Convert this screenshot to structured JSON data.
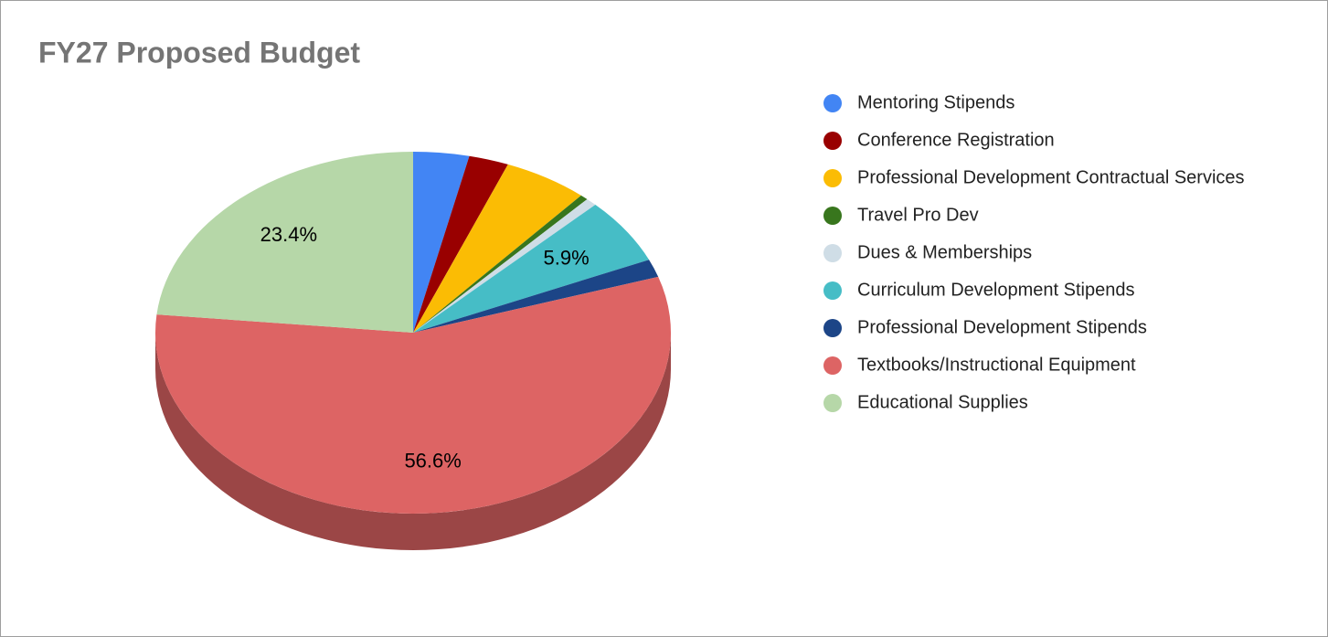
{
  "chart_data": {
    "type": "pie",
    "title": "FY27 Proposed Budget",
    "categories": [
      "Mentoring Stipends",
      "Conference Registration",
      "Professional Development Contractual Services",
      "Travel Pro Dev",
      "Dues & Memberships",
      "Curriculum Development Stipends",
      "Professional Development Stipends",
      "Textbooks/Instructional Equipment",
      "Educational Supplies"
    ],
    "values": [
      3.5,
      2.5,
      5.3,
      0.5,
      0.7,
      5.9,
      1.6,
      56.6,
      23.4
    ],
    "value_labels": [
      null,
      null,
      null,
      null,
      null,
      "5.9%",
      null,
      "56.6%",
      "23.4%"
    ],
    "colors": [
      "#4285f4",
      "#990000",
      "#fbbc04",
      "#38761d",
      "#cfdde6",
      "#46bdc6",
      "#1c4587",
      "#dd6464",
      "#b6d7a8"
    ],
    "legend": "right"
  }
}
